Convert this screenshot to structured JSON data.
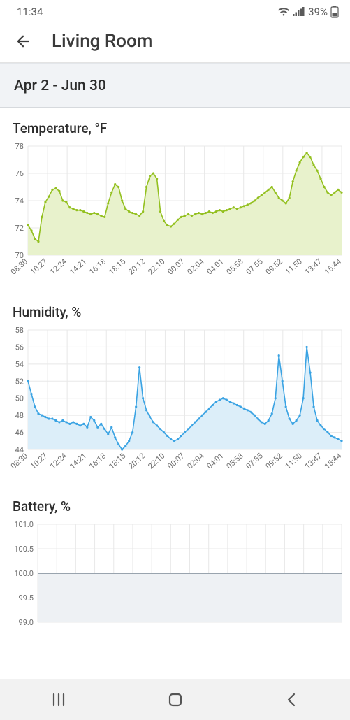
{
  "status": {
    "time": "11:34",
    "battery_pct": "39%",
    "text_color": "#5a5a5a"
  },
  "header": {
    "title": "Living Room"
  },
  "date_range": {
    "label": "Apr 2 - Jun 30",
    "bg": "#f1f3f6"
  },
  "x_labels": [
    "08:30",
    "10:27",
    "12:24",
    "14:21",
    "16:18",
    "18:15",
    "20:12",
    "22:10",
    "00:07",
    "02:04",
    "04:01",
    "05:58",
    "07:55",
    "09:52",
    "11:50",
    "13:47",
    "15:44"
  ],
  "charts": {
    "temperature": {
      "type": "area",
      "title": "Temperature, °F",
      "ylim": [
        70,
        78
      ],
      "yticks": [
        70,
        72,
        74,
        76,
        78
      ],
      "line_color": "#93c01f",
      "fill_color": "#e8f2cc",
      "grid_color": "#e8e8e8",
      "axis_text_color": "#6e6e6e",
      "axis_font_size": 11,
      "values": [
        72.2,
        71.8,
        71.2,
        71.0,
        72.8,
        73.9,
        74.3,
        74.8,
        74.9,
        74.7,
        74.0,
        73.9,
        73.5,
        73.4,
        73.3,
        73.3,
        73.2,
        73.1,
        73.0,
        73.1,
        73.0,
        72.9,
        72.8,
        73.8,
        74.6,
        75.2,
        75.0,
        74.0,
        73.4,
        73.2,
        73.1,
        73.0,
        72.9,
        73.2,
        75.0,
        75.8,
        76.0,
        75.6,
        73.2,
        72.5,
        72.2,
        72.1,
        72.3,
        72.6,
        72.8,
        72.9,
        73.0,
        72.9,
        73.0,
        73.1,
        73.0,
        73.1,
        73.2,
        73.1,
        73.2,
        73.3,
        73.2,
        73.3,
        73.4,
        73.5,
        73.4,
        73.5,
        73.6,
        73.7,
        73.8,
        74.0,
        74.2,
        74.4,
        74.6,
        74.8,
        75.0,
        74.6,
        74.2,
        74.0,
        73.8,
        74.2,
        75.4,
        76.2,
        76.8,
        77.2,
        77.5,
        77.2,
        76.6,
        76.2,
        75.6,
        75.0,
        74.6,
        74.4,
        74.6,
        74.8,
        74.6
      ]
    },
    "humidity": {
      "type": "area",
      "title": "Humidity, %",
      "ylim": [
        44,
        58
      ],
      "yticks": [
        44,
        46,
        48,
        50,
        52,
        54,
        56,
        58
      ],
      "line_color": "#3aa3e3",
      "fill_color": "#dceef9",
      "grid_color": "#e8e8e8",
      "axis_text_color": "#6e6e6e",
      "axis_font_size": 11,
      "values": [
        52.0,
        50.5,
        49.0,
        48.2,
        48.0,
        47.8,
        47.6,
        47.6,
        47.4,
        47.2,
        47.4,
        47.2,
        47.0,
        47.2,
        47.0,
        46.8,
        47.0,
        46.6,
        47.8,
        47.4,
        46.6,
        47.0,
        46.4,
        45.8,
        46.6,
        45.4,
        44.6,
        44.0,
        44.4,
        45.0,
        46.0,
        49.0,
        53.6,
        50.0,
        48.6,
        47.8,
        47.2,
        46.8,
        46.4,
        46.0,
        45.6,
        45.2,
        45.0,
        45.2,
        45.6,
        46.0,
        46.4,
        46.8,
        47.2,
        47.6,
        48.0,
        48.4,
        48.8,
        49.2,
        49.6,
        49.8,
        50.0,
        49.8,
        49.6,
        49.4,
        49.2,
        49.0,
        48.8,
        48.6,
        48.4,
        48.0,
        47.6,
        47.2,
        47.0,
        47.4,
        48.2,
        50.0,
        55.0,
        52.0,
        49.0,
        47.6,
        47.0,
        47.4,
        48.0,
        50.0,
        56.0,
        53.0,
        49.0,
        47.4,
        46.8,
        46.4,
        46.0,
        45.6,
        45.4,
        45.2,
        45.0
      ]
    },
    "battery": {
      "type": "line",
      "title": "Battery, %",
      "ylim": [
        99.0,
        101.0
      ],
      "yticks": [
        99.0,
        99.5,
        100.0,
        100.5,
        101.0
      ],
      "line_color": "#7d8a96",
      "fill_color": "#eef1f4",
      "grid_color": "#e8e8e8",
      "axis_text_color": "#6e6e6e",
      "axis_font_size": 11,
      "values": [
        100,
        100,
        100,
        100,
        100,
        100,
        100,
        100,
        100,
        100,
        100,
        100,
        100,
        100,
        100,
        100,
        100,
        100,
        100,
        100,
        100,
        100,
        100,
        100,
        100,
        100,
        100,
        100,
        100,
        100,
        100,
        100,
        100,
        100,
        100,
        100,
        100,
        100,
        100,
        100,
        100,
        100,
        100,
        100,
        100,
        100,
        100,
        100,
        100,
        100,
        100,
        100,
        100,
        100,
        100,
        100,
        100,
        100,
        100,
        100,
        100,
        100,
        100,
        100,
        100,
        100,
        100,
        100,
        100,
        100,
        100,
        100,
        100,
        100,
        100,
        100,
        100,
        100,
        100,
        100,
        100,
        100,
        100,
        100,
        100,
        100,
        100,
        100,
        100,
        100,
        100
      ]
    }
  },
  "nav": {
    "bg": "#f2f2f2",
    "icon_color": "#555555"
  }
}
